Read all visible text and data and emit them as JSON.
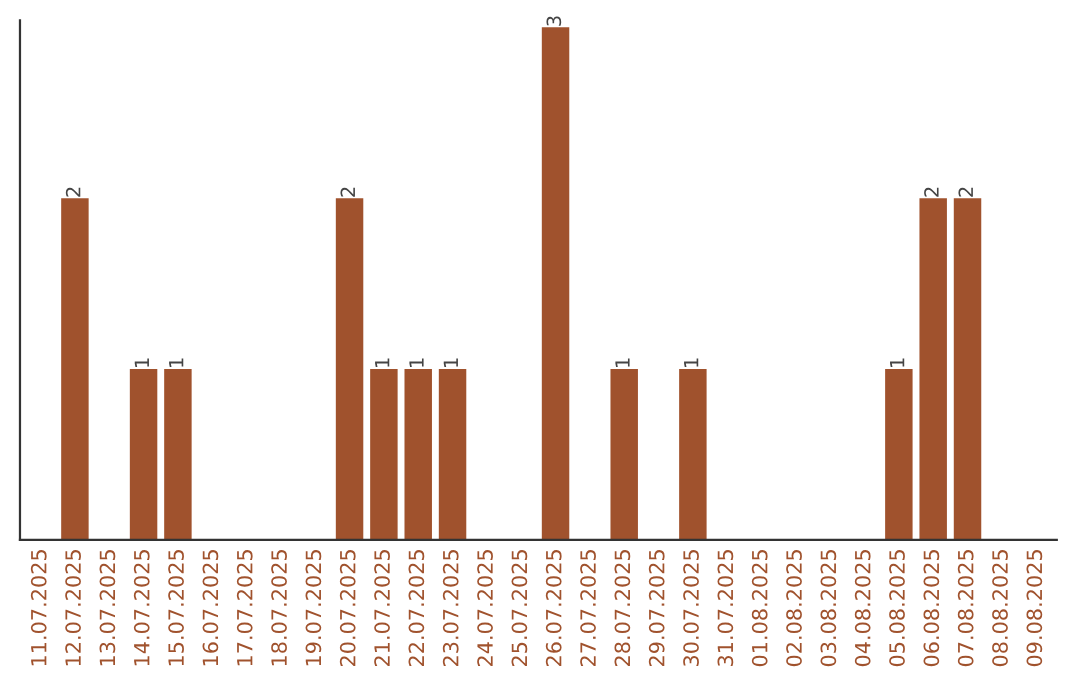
{
  "chart_data": {
    "type": "bar",
    "categories": [
      "11.07.2025",
      "12.07.2025",
      "13.07.2025",
      "14.07.2025",
      "15.07.2025",
      "16.07.2025",
      "17.07.2025",
      "18.07.2025",
      "19.07.2025",
      "20.07.2025",
      "21.07.2025",
      "22.07.2025",
      "23.07.2025",
      "24.07.2025",
      "25.07.2025",
      "26.07.2025",
      "27.07.2025",
      "28.07.2025",
      "29.07.2025",
      "30.07.2025",
      "31.07.2025",
      "01.08.2025",
      "02.08.2025",
      "03.08.2025",
      "04.08.2025",
      "05.08.2025",
      "06.08.2025",
      "07.08.2025",
      "08.08.2025",
      "09.08.2025"
    ],
    "values": [
      0,
      2,
      0,
      1,
      1,
      0,
      0,
      0,
      0,
      2,
      1,
      1,
      1,
      0,
      0,
      3,
      0,
      1,
      0,
      1,
      0,
      0,
      0,
      0,
      0,
      1,
      2,
      2,
      0,
      0
    ],
    "value_labels": [
      null,
      "2",
      null,
      "1",
      "1",
      null,
      null,
      null,
      null,
      "2",
      "1",
      "1",
      "1",
      null,
      null,
      "3",
      null,
      "1",
      null,
      "1",
      null,
      null,
      null,
      null,
      null,
      "1",
      "2",
      "2",
      null,
      null
    ],
    "color": "#a0522d",
    "ylim": [
      0,
      3.04
    ],
    "tick_labels": "x",
    "grid": false,
    "legend": false
  }
}
